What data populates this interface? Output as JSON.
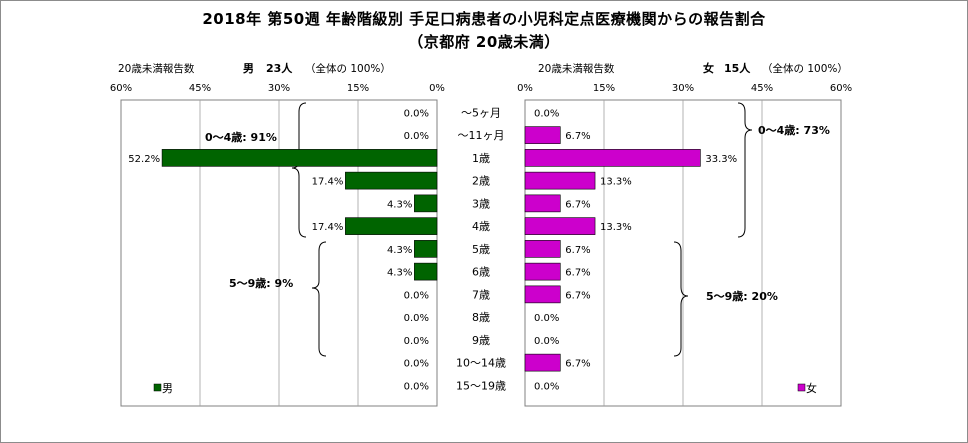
{
  "title_line1": "2018年 第50週 年齢階級別 手足口病患者の小児科定点医療機関からの報告割合",
  "title_line2": "（京都府 20歳未満）",
  "left_header": {
    "label": "20歳未満報告数",
    "sex": "男",
    "count": "23人",
    "total": "（全体の 100%）"
  },
  "right_header": {
    "label": "20歳未満報告数",
    "sex": "女",
    "count": "15人",
    "total": "（全体の 100%）"
  },
  "chart_data": {
    "type": "bar",
    "orientation": "horizontal-butterfly",
    "categories": [
      "〜5ヶ月",
      "〜11ヶ月",
      "1歳",
      "2歳",
      "3歳",
      "4歳",
      "5歳",
      "6歳",
      "7歳",
      "8歳",
      "9歳",
      "10〜14歳",
      "15〜19歳"
    ],
    "xlim": [
      0,
      60
    ],
    "x_ticks": [
      "0%",
      "15%",
      "30%",
      "45%",
      "60%"
    ],
    "x_tick_values": [
      0,
      15,
      30,
      45,
      60
    ],
    "series": [
      {
        "name": "男",
        "side": "left",
        "color": "#006400",
        "values": [
          0.0,
          0.0,
          52.2,
          17.4,
          4.3,
          17.4,
          4.3,
          4.3,
          0.0,
          0.0,
          0.0,
          0.0,
          0.0
        ],
        "labels": [
          "0.0%",
          "0.0%",
          "52.2%",
          "17.4%",
          "4.3%",
          "17.4%",
          "4.3%",
          "4.3%",
          "0.0%",
          "0.0%",
          "0.0%",
          "0.0%",
          "0.0%"
        ]
      },
      {
        "name": "女",
        "side": "right",
        "color": "#cc00cc",
        "values": [
          0.0,
          6.7,
          33.3,
          13.3,
          6.7,
          13.3,
          6.7,
          6.7,
          6.7,
          0.0,
          0.0,
          6.7,
          0.0
        ],
        "labels": [
          "0.0%",
          "6.7%",
          "33.3%",
          "13.3%",
          "6.7%",
          "13.3%",
          "6.7%",
          "6.7%",
          "6.7%",
          "0.0%",
          "0.0%",
          "6.7%",
          "0.0%"
        ]
      }
    ],
    "annotations": {
      "male_0_4": "0〜4歳: 91%",
      "male_5_9": "5〜9歳: 9%",
      "female_0_4": "0〜4歳: 73%",
      "female_5_9": "5〜9歳: 20%"
    },
    "legend_placement": "bottom-left (男) / bottom-right (女)",
    "grid": true
  }
}
